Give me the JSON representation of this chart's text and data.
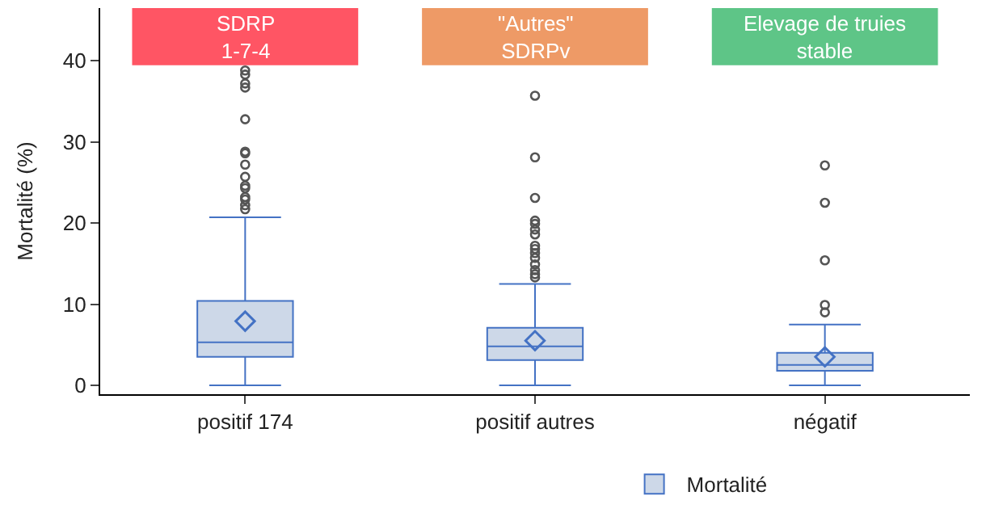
{
  "chart_data": {
    "type": "box",
    "ylabel": "Mortalité (%)",
    "categories": [
      "positif 174",
      "positif autres",
      "négatif"
    ],
    "series": [
      {
        "name": "Mortalité",
        "color": "#cdd8e8",
        "boxes": [
          {
            "low": 0,
            "q1": 3.5,
            "median": 5.3,
            "q3": 10.4,
            "high": 20.7,
            "mean": 7.9,
            "outliers": [
              38.8,
              38.3,
              37.2,
              36.7,
              32.8,
              28.8,
              28.6,
              27.2,
              25.7,
              24.6,
              24.3,
              23.2,
              22.9,
              22.2,
              21.7
            ]
          },
          {
            "low": 0,
            "q1": 3.1,
            "median": 4.8,
            "q3": 7.1,
            "high": 12.5,
            "mean": 5.5,
            "outliers": [
              35.7,
              28.1,
              23.1,
              20.3,
              19.9,
              19.2,
              18.6,
              17.2,
              16.8,
              16.3,
              15.7,
              14.9,
              14.2,
              13.7,
              13.3
            ]
          },
          {
            "low": 0,
            "q1": 1.8,
            "median": 2.5,
            "q3": 4.0,
            "high": 7.5,
            "mean": 3.5,
            "outliers": [
              27.1,
              22.5,
              15.4,
              9.9,
              9.0
            ]
          }
        ]
      }
    ],
    "ylim": [
      -1.1,
      46.5
    ],
    "yticks": [
      0,
      10,
      20,
      30,
      40
    ],
    "annotations": [
      "SDRP\n1-7-4",
      "\"Autres\"\nSDRPv",
      "Elevage de truies\nstable"
    ],
    "legend": "bottom"
  }
}
